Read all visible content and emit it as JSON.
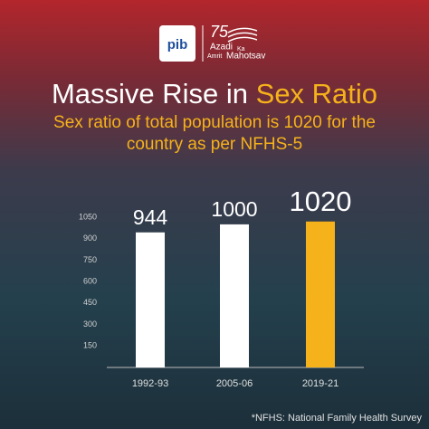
{
  "logo": {
    "pib": "pib",
    "number": "75",
    "words": [
      "Azadi",
      "Ka",
      "Amrit",
      "Mahotsav"
    ]
  },
  "chart_data": {
    "type": "bar",
    "title": [
      "Massive Rise in",
      "Sex Ratio"
    ],
    "subtitle": "Sex ratio of total population is 1020 for the country as per NFHS-5",
    "categories": [
      "1992-93",
      "2005-06",
      "2019-21"
    ],
    "values": [
      944,
      1000,
      1020
    ],
    "colors": [
      "#ffffff",
      "#ffffff",
      "#f5b21b"
    ],
    "ylim": [
      0,
      1050
    ],
    "yticks": [
      150,
      300,
      450,
      600,
      750,
      900,
      1050
    ],
    "footnote": "*NFHS: National Family Health Survey"
  }
}
